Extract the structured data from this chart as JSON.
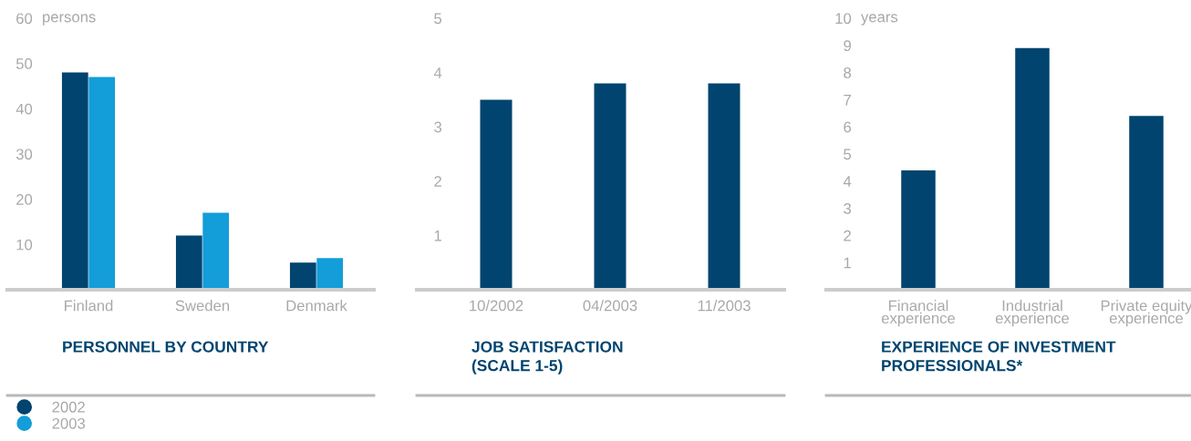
{
  "chart_data": [
    {
      "type": "bar",
      "title": "PERSONNEL BY COUNTRY",
      "ylabel": "persons",
      "categories": [
        "Finland",
        "Sweden",
        "Denmark"
      ],
      "series": [
        {
          "name": "2002",
          "color": "#00446f",
          "values": [
            48,
            12,
            6
          ]
        },
        {
          "name": "2003",
          "color": "#139dd9",
          "values": [
            47,
            17,
            7
          ]
        }
      ],
      "ylim": [
        0,
        60
      ],
      "yticks": [
        10,
        20,
        30,
        40,
        50,
        60
      ],
      "legend": "bottom left"
    },
    {
      "type": "bar",
      "title": "JOB SATISFACTION\n(SCALE 1-5)",
      "categories": [
        "10/2002",
        "04/2003",
        "11/2003"
      ],
      "series": [
        {
          "color": "#00446f",
          "values": [
            3.5,
            3.8,
            3.8
          ]
        }
      ],
      "ylim": [
        0,
        5
      ],
      "yticks": [
        1,
        2,
        3,
        4,
        5
      ]
    },
    {
      "type": "bar",
      "title": "EXPERIENCE OF INVESTMENT\nPROFESSIONALS*",
      "ylabel": "years",
      "categories": [
        "Financial\nexperience",
        "Industrial\nexperience",
        "Private equity\nexperience"
      ],
      "series": [
        {
          "color": "#00446f",
          "values": [
            4.4,
            8.9,
            6.4
          ]
        }
      ],
      "ylim": [
        0,
        10
      ],
      "yticks": [
        1,
        2,
        3,
        4,
        5,
        6,
        7,
        8,
        9,
        10
      ]
    }
  ]
}
